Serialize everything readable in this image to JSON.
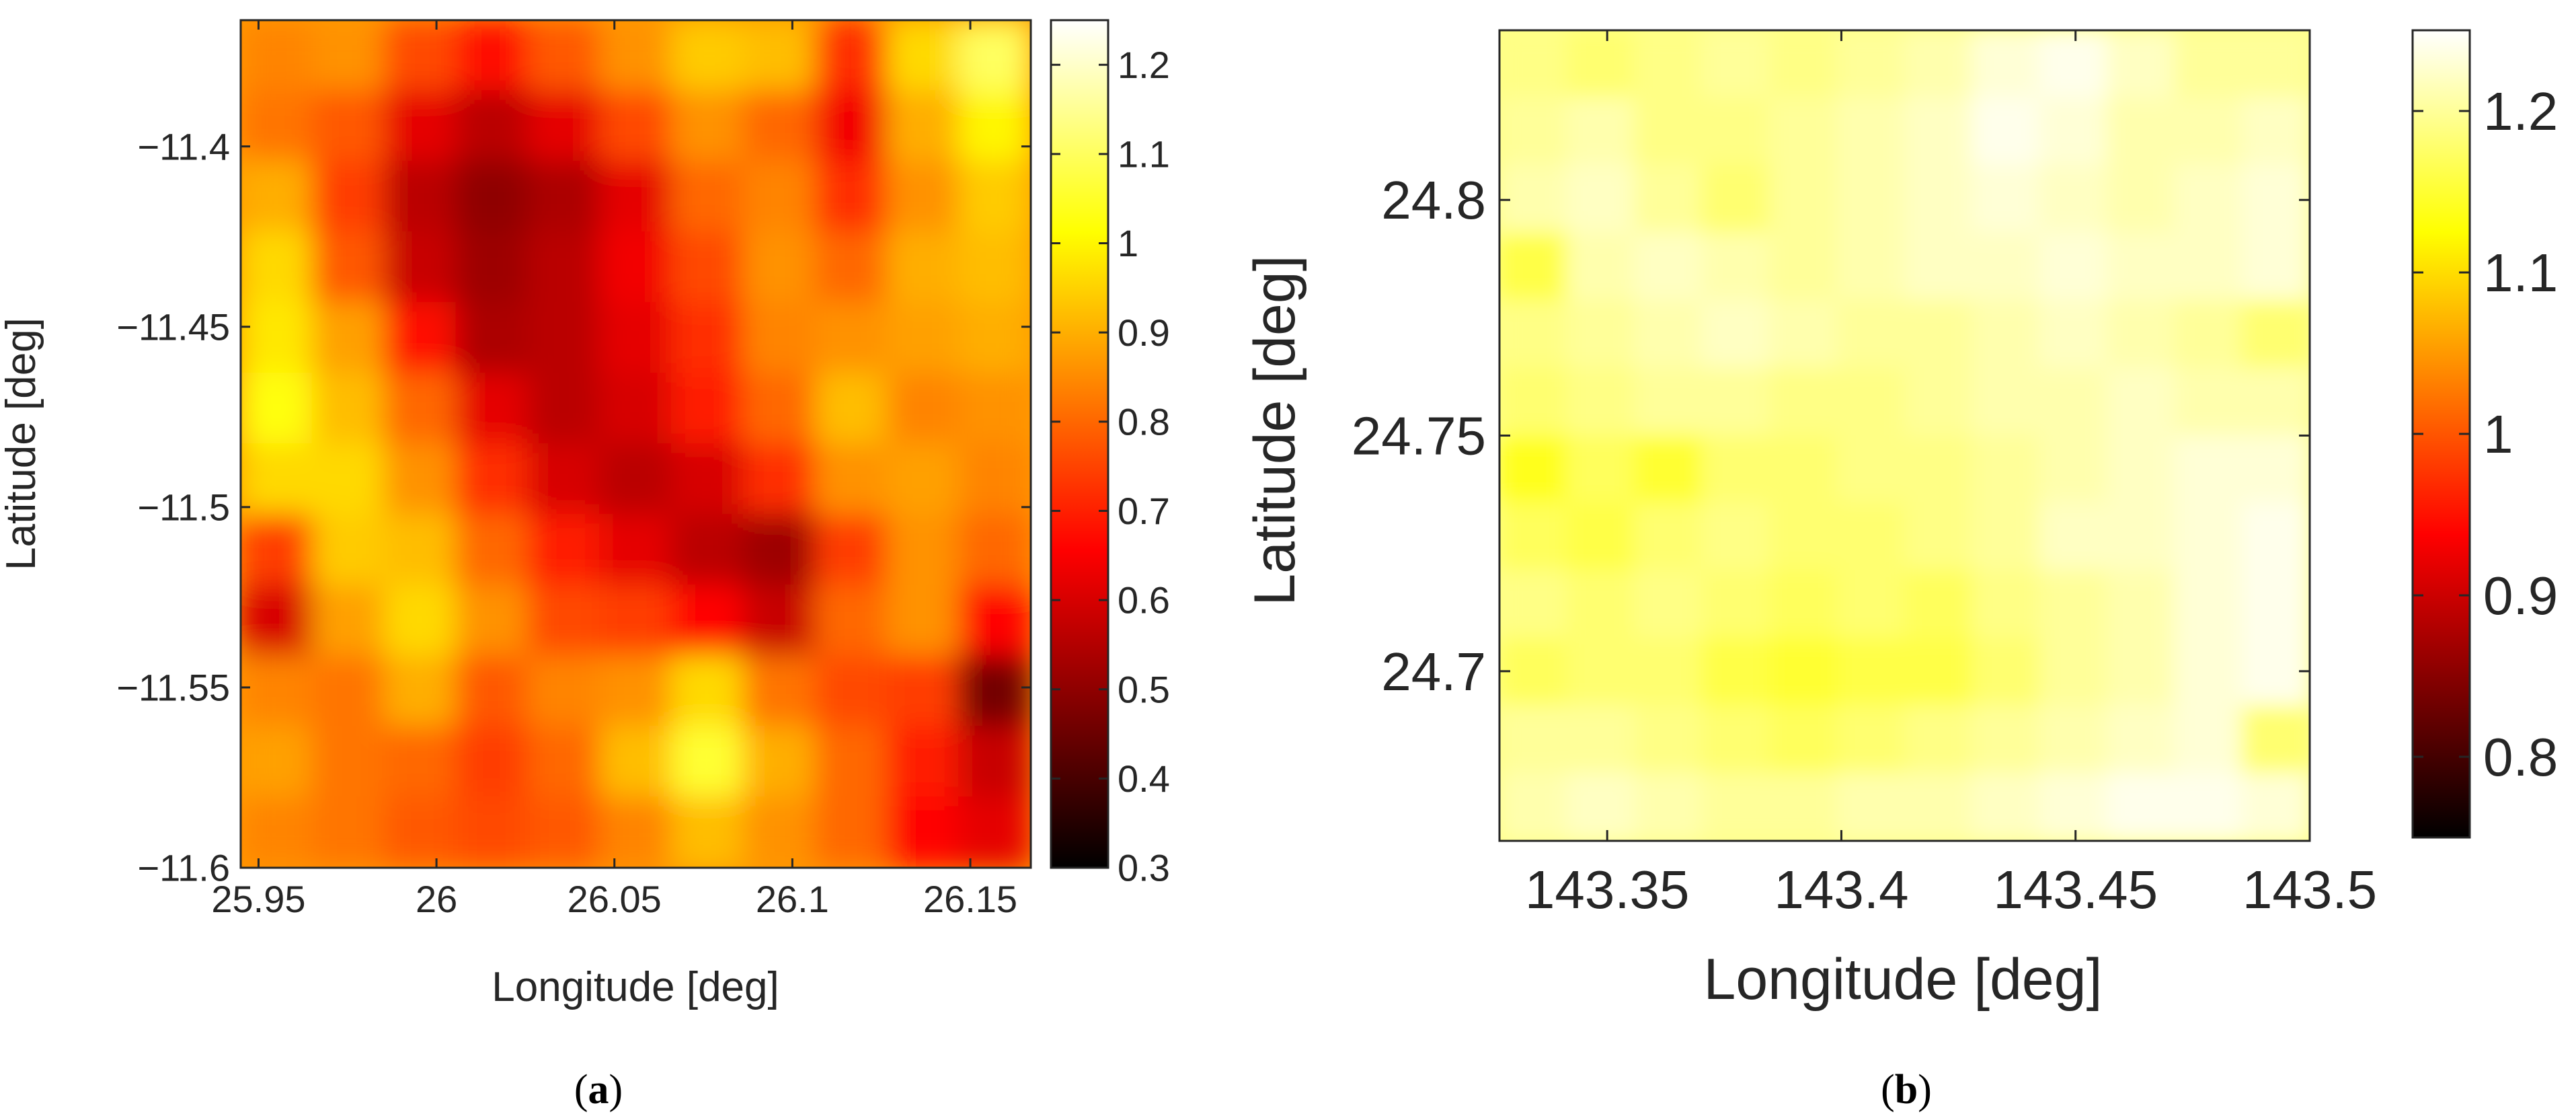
{
  "chart_data": [
    {
      "type": "heatmap",
      "panel_label": "(a)",
      "panel_letter": "a",
      "xlabel": "Longitude [deg]",
      "ylabel": "Latitude [deg]",
      "xlim": [
        25.945,
        26.167
      ],
      "ylim": [
        -11.6,
        -11.365
      ],
      "xticks": [
        25.95,
        26,
        26.05,
        26.1,
        26.15
      ],
      "xtick_labels": [
        "25.95",
        "26",
        "26.05",
        "26.1",
        "26.15"
      ],
      "yticks": [
        -11.4,
        -11.45,
        -11.5,
        -11.55,
        -11.6
      ],
      "ytick_labels": [
        "−11.4",
        "−11.45",
        "−11.5",
        "−11.55",
        "−11.6"
      ],
      "colormap": "hot",
      "colorbar": {
        "range": [
          0.3,
          1.25
        ],
        "ticks": [
          1.2,
          1.1,
          1,
          0.9,
          0.8,
          0.7,
          0.6,
          0.5,
          0.4,
          0.3
        ],
        "tick_labels": [
          "1.2",
          "1.1",
          "1",
          "0.9",
          "0.8",
          "0.7",
          "0.6",
          "0.5",
          "0.4",
          "0.3"
        ]
      },
      "grid": {
        "rows": 12,
        "cols": 11,
        "order": "rows listed north to south, columns west to east",
        "values": [
          [
            0.84,
            0.86,
            0.76,
            0.68,
            0.78,
            0.86,
            0.94,
            0.92,
            0.72,
            0.96,
            1.1
          ],
          [
            0.82,
            0.78,
            0.62,
            0.56,
            0.62,
            0.76,
            0.86,
            0.8,
            0.64,
            0.9,
            1.0
          ],
          [
            0.9,
            0.74,
            0.56,
            0.5,
            0.54,
            0.62,
            0.8,
            0.84,
            0.72,
            0.86,
            0.94
          ],
          [
            0.96,
            0.78,
            0.58,
            0.52,
            0.56,
            0.64,
            0.76,
            0.86,
            0.8,
            0.9,
            0.92
          ],
          [
            0.98,
            0.88,
            0.68,
            0.54,
            0.56,
            0.62,
            0.72,
            0.84,
            0.86,
            0.88,
            0.9
          ],
          [
            1.02,
            0.92,
            0.8,
            0.62,
            0.56,
            0.6,
            0.7,
            0.8,
            0.92,
            0.84,
            0.86
          ],
          [
            0.96,
            0.96,
            0.86,
            0.72,
            0.6,
            0.56,
            0.6,
            0.72,
            0.86,
            0.88,
            0.84
          ],
          [
            0.74,
            0.94,
            0.92,
            0.8,
            0.7,
            0.62,
            0.56,
            0.52,
            0.74,
            0.86,
            0.8
          ],
          [
            0.6,
            0.88,
            0.96,
            0.86,
            0.76,
            0.74,
            0.66,
            0.58,
            0.8,
            0.86,
            0.66
          ],
          [
            0.84,
            0.82,
            0.9,
            0.78,
            0.84,
            0.86,
            0.96,
            0.82,
            0.76,
            0.74,
            0.46
          ],
          [
            0.88,
            0.82,
            0.8,
            0.74,
            0.8,
            0.92,
            1.06,
            0.9,
            0.8,
            0.7,
            0.58
          ],
          [
            0.84,
            0.82,
            0.78,
            0.76,
            0.78,
            0.84,
            0.92,
            0.86,
            0.8,
            0.66,
            0.62
          ]
        ]
      }
    },
    {
      "type": "heatmap",
      "panel_label": "(b)",
      "panel_letter": "b",
      "xlabel": "Longitude [deg]",
      "ylabel": "Latitude [deg]",
      "xlim": [
        143.327,
        143.5
      ],
      "ylim": [
        24.664,
        24.836
      ],
      "xticks": [
        143.35,
        143.4,
        143.45,
        143.5
      ],
      "xtick_labels": [
        "143.35",
        "143.4",
        "143.45",
        "143.5"
      ],
      "yticks": [
        24.8,
        24.75,
        24.7
      ],
      "ytick_labels": [
        "24.8",
        "24.75",
        "24.7"
      ],
      "colormap": "hot",
      "colorbar": {
        "range": [
          0.75,
          1.25
        ],
        "ticks": [
          1.2,
          1.1,
          1,
          0.9,
          0.8
        ],
        "tick_labels": [
          "1.2",
          "1.1",
          "1",
          "0.9",
          "0.8"
        ]
      },
      "grid": {
        "rows": 12,
        "cols": 12,
        "order": "rows listed north to south, columns west to east",
        "values": [
          [
            1.19,
            1.18,
            1.19,
            1.2,
            1.19,
            1.2,
            1.21,
            1.23,
            1.24,
            1.22,
            1.2,
            1.2
          ],
          [
            1.2,
            1.21,
            1.19,
            1.19,
            1.2,
            1.21,
            1.22,
            1.24,
            1.23,
            1.21,
            1.21,
            1.22
          ],
          [
            1.21,
            1.22,
            1.2,
            1.18,
            1.2,
            1.21,
            1.22,
            1.23,
            1.22,
            1.21,
            1.22,
            1.23
          ],
          [
            1.16,
            1.21,
            1.22,
            1.21,
            1.2,
            1.21,
            1.22,
            1.22,
            1.23,
            1.22,
            1.22,
            1.23
          ],
          [
            1.19,
            1.2,
            1.21,
            1.22,
            1.21,
            1.2,
            1.2,
            1.21,
            1.22,
            1.21,
            1.2,
            1.18
          ],
          [
            1.18,
            1.19,
            1.2,
            1.2,
            1.19,
            1.19,
            1.2,
            1.21,
            1.21,
            1.22,
            1.21,
            1.21
          ],
          [
            1.14,
            1.17,
            1.15,
            1.18,
            1.18,
            1.19,
            1.19,
            1.2,
            1.21,
            1.22,
            1.23,
            1.23
          ],
          [
            1.17,
            1.16,
            1.18,
            1.19,
            1.18,
            1.18,
            1.19,
            1.2,
            1.22,
            1.22,
            1.23,
            1.24
          ],
          [
            1.19,
            1.18,
            1.19,
            1.18,
            1.17,
            1.18,
            1.17,
            1.19,
            1.2,
            1.21,
            1.23,
            1.24
          ],
          [
            1.17,
            1.18,
            1.18,
            1.16,
            1.15,
            1.16,
            1.16,
            1.18,
            1.2,
            1.21,
            1.23,
            1.24
          ],
          [
            1.2,
            1.2,
            1.19,
            1.18,
            1.17,
            1.18,
            1.19,
            1.2,
            1.21,
            1.22,
            1.23,
            1.18
          ],
          [
            1.21,
            1.22,
            1.21,
            1.2,
            1.2,
            1.21,
            1.21,
            1.22,
            1.23,
            1.24,
            1.24,
            1.23
          ]
        ]
      }
    }
  ]
}
